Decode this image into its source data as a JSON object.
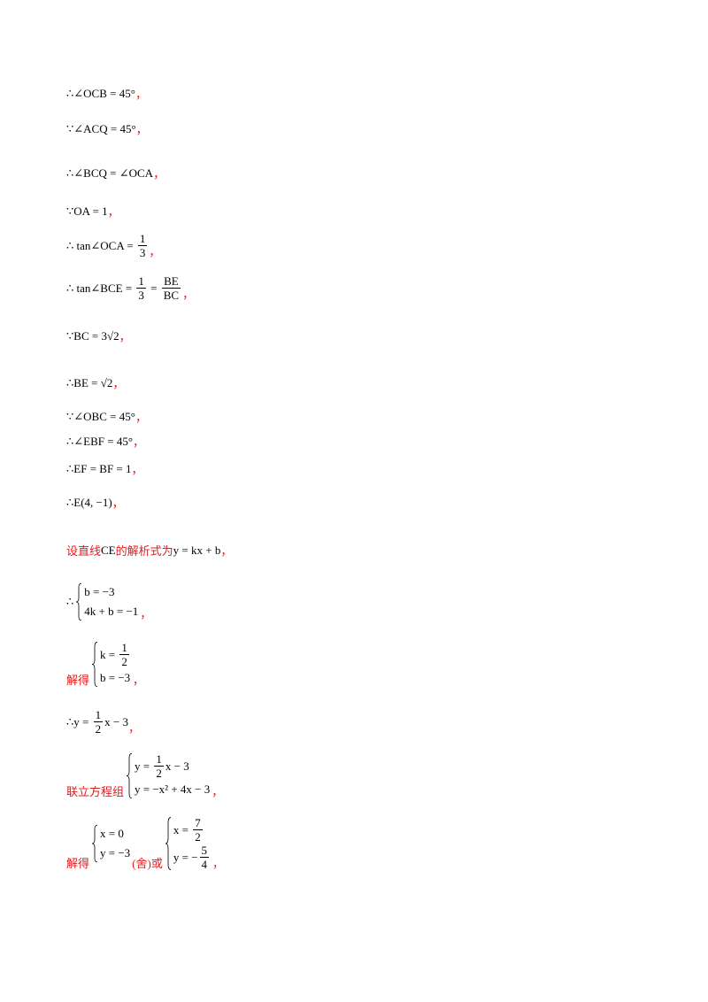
{
  "lines": [
    {
      "parts": [
        "∴∠OCB = 45°",
        {
          "t": "，",
          "color": "#e8191b"
        }
      ]
    },
    {
      "parts": [
        "∵∠ACQ = 45°",
        {
          "t": "，",
          "color": "#e8191b"
        }
      ]
    },
    {
      "parts": [
        "∴∠BCQ = ∠OCA",
        {
          "t": "，",
          "color": "#e8191b"
        }
      ]
    },
    {
      "parts": [
        "∵OA = 1",
        {
          "t": "，",
          "color": "#e8191b"
        }
      ]
    },
    {
      "parts": [
        "∴ tan∠OCA = ",
        {
          "num": "1",
          "den": "3"
        },
        {
          "t": "，",
          "color": "#e8191b"
        }
      ]
    },
    {
      "parts": [
        "∴ tan∠BCE = ",
        {
          "num": "1",
          "den": "3"
        },
        " = ",
        {
          "num": "BE",
          "den": "BC"
        },
        {
          "t": "，",
          "color": "#e8191b"
        }
      ]
    },
    {
      "parts": [
        "∵BC = 3√2",
        {
          "t": "，",
          "color": "#e8191b"
        }
      ]
    },
    {
      "parts": [
        "∴BE = √2",
        {
          "t": "，",
          "color": "#e8191b"
        }
      ]
    },
    {
      "parts": [
        "∵∠OBC = 45°",
        {
          "t": "，",
          "color": "#e8191b"
        }
      ]
    },
    {
      "parts": [
        "∴∠EBF = 45°",
        {
          "t": "，",
          "color": "#e8191b"
        }
      ]
    },
    {
      "parts": [
        "∴EF = BF = 1",
        {
          "t": "，",
          "color": "#e8191b"
        }
      ]
    },
    {
      "parts": [
        "∴E(4, −1)",
        {
          "t": "，",
          "color": "#e8191b"
        }
      ]
    },
    {
      "parts": [
        {
          "t": "设直线",
          "color": "#e8191b"
        },
        "CE",
        {
          "t": "的解析式为",
          "color": "#e8191b"
        },
        "y = kx + b",
        {
          "t": "，",
          "color": "#e8191b"
        }
      ]
    },
    {
      "parts": [
        {
          "t": "∴",
          "color": "#000000"
        },
        {
          "rows": [
            [
              "b = −3"
            ],
            [
              "4k + b = −1"
            ]
          ]
        },
        {
          "t": "，",
          "color": "#e8191b"
        }
      ]
    },
    {
      "parts": [
        {
          "t": "解得",
          "color": "#e8191b"
        },
        {
          "rows": [
            [
              "k = ",
              {
                "num": "1",
                "den": "2"
              }
            ],
            [
              "b = −3"
            ]
          ]
        },
        {
          "t": "，",
          "color": "#e8191b"
        }
      ]
    },
    {
      "parts": [
        "∴y = ",
        {
          "num": "1",
          "den": "2"
        },
        "x − 3",
        {
          "t": "，",
          "color": "#e8191b"
        }
      ]
    },
    {
      "parts": [
        {
          "t": "联立方程组",
          "color": "#e8191b"
        },
        {
          "rows": [
            [
              "y = ",
              {
                "num": "1",
                "den": "2"
              },
              "x − 3"
            ],
            [
              "y = −x² + 4x − 3"
            ]
          ]
        },
        {
          "t": "，",
          "color": "#e8191b"
        }
      ]
    },
    {
      "parts": [
        {
          "t": "解得",
          "color": "#e8191b"
        },
        {
          "rows": [
            [
              "x = 0"
            ],
            [
              "y = −3"
            ]
          ]
        },
        {
          "t": "(舍)",
          "color": "#e8191b"
        },
        {
          "t": "或",
          "color": "#e8191b"
        },
        {
          "rows": [
            [
              "x = ",
              {
                "num": "7",
                "den": "2"
              }
            ],
            [
              "y = −",
              {
                "num": "5",
                "den": "4"
              }
            ]
          ]
        },
        {
          "t": "，",
          "color": "#e8191b"
        }
      ]
    }
  ]
}
